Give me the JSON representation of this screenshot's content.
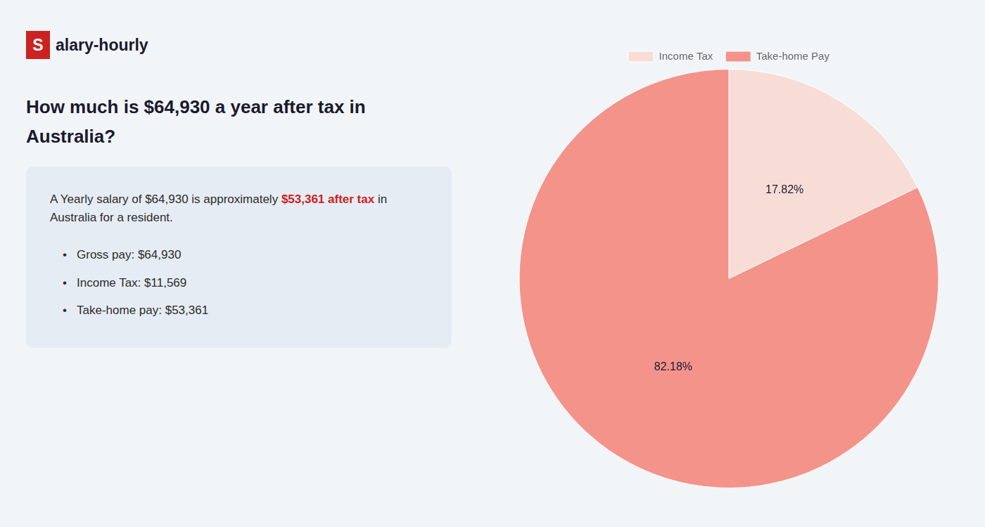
{
  "chart_data": {
    "type": "pie",
    "title": [
      "How much is $64,930 a year after tax in",
      "Australia?"
    ],
    "categories": [
      "Income Tax",
      "Take-home Pay"
    ],
    "values": [
      17.82,
      82.18
    ],
    "value_labels": [
      "17.82%",
      "82.18%"
    ],
    "colors": [
      "#f8ddd6",
      "#f4938a"
    ],
    "data_labels": true,
    "legend": "top",
    "annotations": [
      [
        {
          "text": "S",
          "color": "#cc2222"
        },
        {
          "text": "alary-hourly"
        }
      ],
      [
        {
          "text": "A Yearly salary of $64,930 is approximately "
        },
        {
          "text": "$53,361 after tax",
          "color": "#cc2222"
        },
        {
          "text": " in"
        }
      ],
      [
        {
          "text": "Australia for a resident."
        }
      ],
      [
        {
          "text": "•"
        },
        {
          "text": "Gross pay: $64,930"
        }
      ],
      [
        {
          "text": "•"
        },
        {
          "text": "Income Tax: $11,569"
        }
      ],
      [
        {
          "text": "•"
        },
        {
          "text": "Take-home pay: $53,361"
        }
      ]
    ]
  }
}
